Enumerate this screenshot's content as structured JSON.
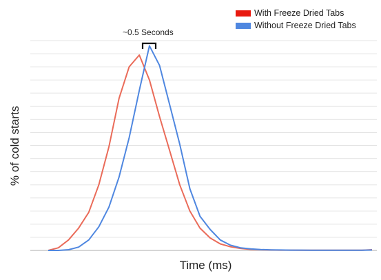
{
  "chart_data": {
    "type": "line",
    "title": "",
    "xlabel": "Time (ms)",
    "ylabel": "% of cold starts",
    "grid": true,
    "legend_position": "top-right",
    "annotation": "~0.5 Seconds",
    "ylim": [
      0,
      16
    ],
    "x": [
      0,
      1,
      2,
      3,
      4,
      5,
      6,
      7,
      8,
      9,
      10,
      11,
      12,
      13,
      14,
      15,
      16,
      17,
      18,
      19,
      20,
      21,
      22,
      23,
      24,
      25,
      26,
      27,
      28,
      29,
      30,
      31,
      32
    ],
    "series": [
      {
        "name": "With Freeze Dried Tabs",
        "color": "#ea6b59",
        "values": [
          0,
          0.2,
          0.8,
          1.7,
          2.9,
          5.0,
          7.9,
          11.6,
          14.0,
          14.9,
          13.0,
          10.2,
          7.6,
          5.0,
          3.0,
          1.7,
          0.95,
          0.5,
          0.28,
          0.15,
          0.08,
          0.05,
          0.03,
          0.02,
          0.02,
          0.01,
          0.01,
          0.01,
          0.01,
          0.01,
          0.01,
          0.01,
          0.05
        ]
      },
      {
        "name": "Without Freeze Dried Tabs",
        "color": "#4f87e0",
        "values": [
          0,
          0,
          0.05,
          0.25,
          0.8,
          1.8,
          3.3,
          5.6,
          8.6,
          12.2,
          15.6,
          14.1,
          11.1,
          8.1,
          4.7,
          2.6,
          1.6,
          0.8,
          0.4,
          0.2,
          0.12,
          0.07,
          0.04,
          0.03,
          0.02,
          0.02,
          0.01,
          0.01,
          0.01,
          0.01,
          0.01,
          0.01,
          0.03
        ]
      }
    ]
  }
}
